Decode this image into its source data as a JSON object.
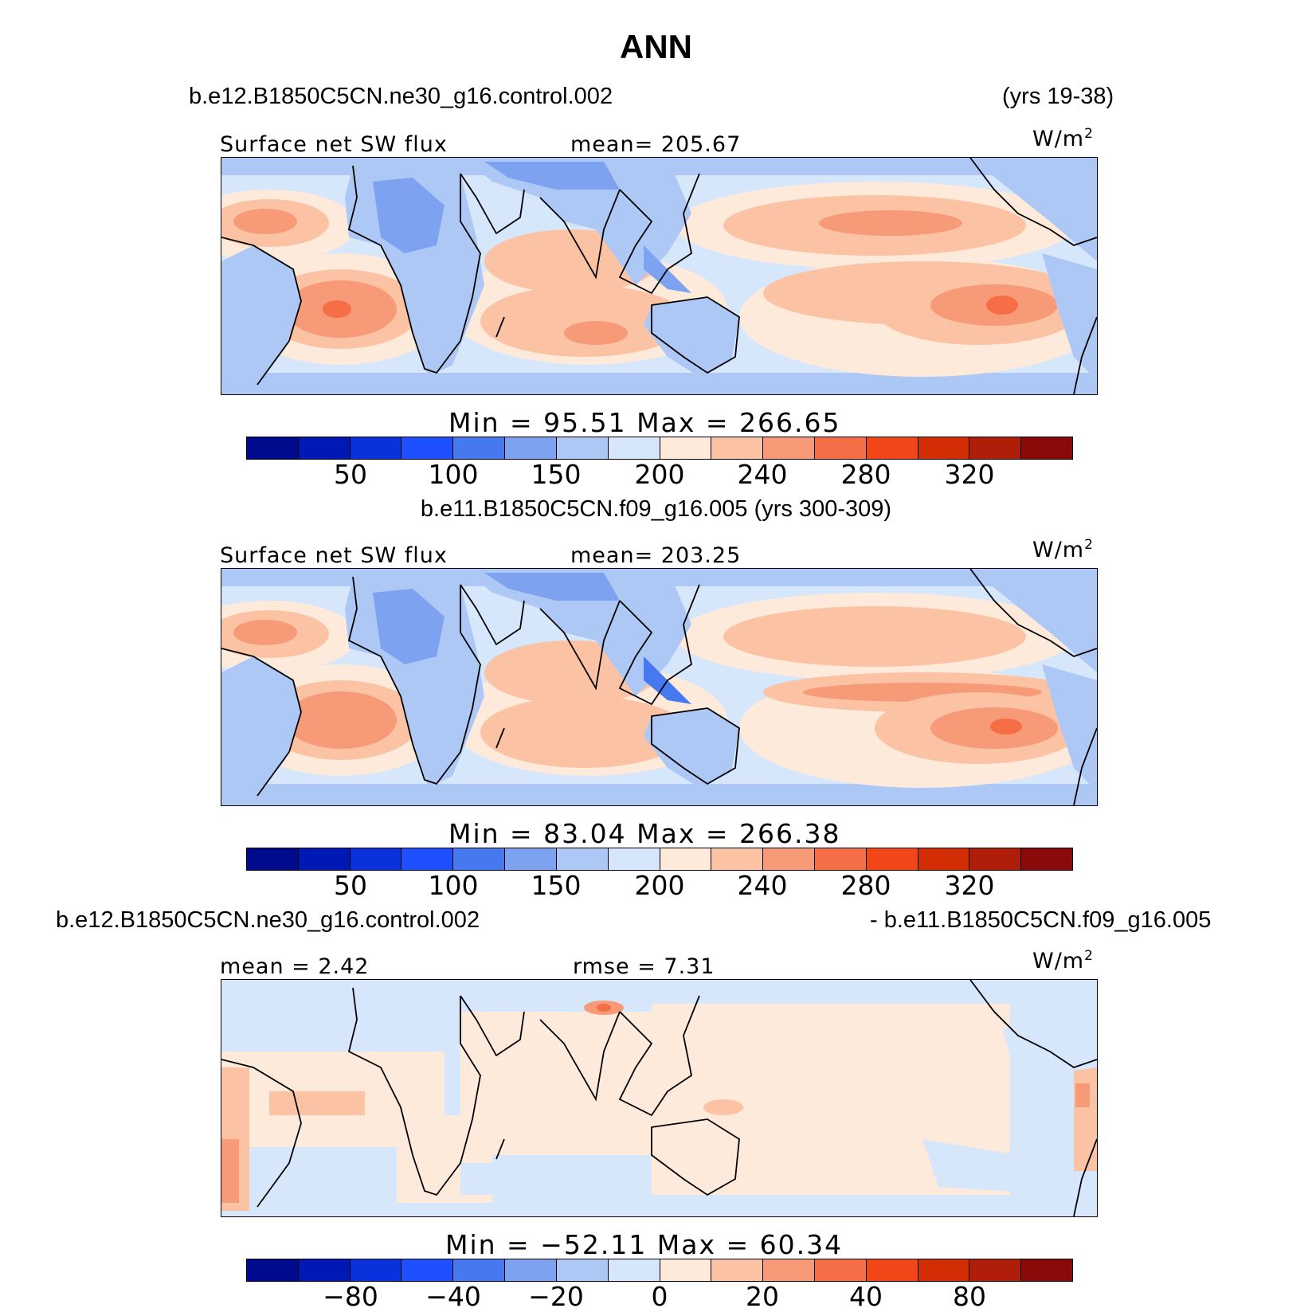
{
  "title": "ANN",
  "panel1": {
    "case_left": "b.e12.B1850C5CN.ne30_g16.control.002",
    "case_right": "(yrs 19-38)",
    "var_label": "Surface net SW flux",
    "mean_label": "mean= 205.67",
    "units": "W/m",
    "minmax": "Min =  95.51  Max = 266.65",
    "ticks": [
      "50",
      "100",
      "150",
      "200",
      "240",
      "280",
      "320"
    ]
  },
  "panel2": {
    "case": "b.e11.B1850C5CN.f09_g16.005 (yrs 300-309)",
    "var_label": "Surface net SW flux",
    "mean_label": "mean= 203.25",
    "units": "W/m",
    "minmax": "Min =  83.04  Max = 266.38",
    "ticks": [
      "50",
      "100",
      "150",
      "200",
      "240",
      "280",
      "320"
    ]
  },
  "panel3": {
    "case_left": "b.e12.B1850C5CN.ne30_g16.control.002",
    "case_right": "- b.e11.B1850C5CN.f09_g16.005",
    "mean_label": "mean =   2.42",
    "rmse_label": "rmse =   7.31",
    "units": "W/m",
    "minmax": "Min = −52.11  Max =  60.34",
    "ticks": [
      "−80",
      "−40",
      "−20",
      "0",
      "20",
      "40",
      "80"
    ]
  },
  "colorbar": [
    "#000a8c",
    "#0019b4",
    "#0a32dc",
    "#1e50ff",
    "#4678f0",
    "#7ca2f0",
    "#aec8f5",
    "#d6e6fb",
    "#fdeadb",
    "#fbc3a4",
    "#f79a78",
    "#f56e46",
    "#f04618",
    "#d22d05",
    "#b01e0a",
    "#8a0a0a"
  ],
  "map_colors": {
    "ocean_base": "#d6e6fb",
    "warm1": "#fdeadb",
    "warm2": "#fbc3a4",
    "warm3": "#f79a78",
    "warm4": "#f56e46",
    "cool1": "#aec8f5",
    "cool2": "#7ca2f0",
    "cool3": "#4678f0"
  }
}
